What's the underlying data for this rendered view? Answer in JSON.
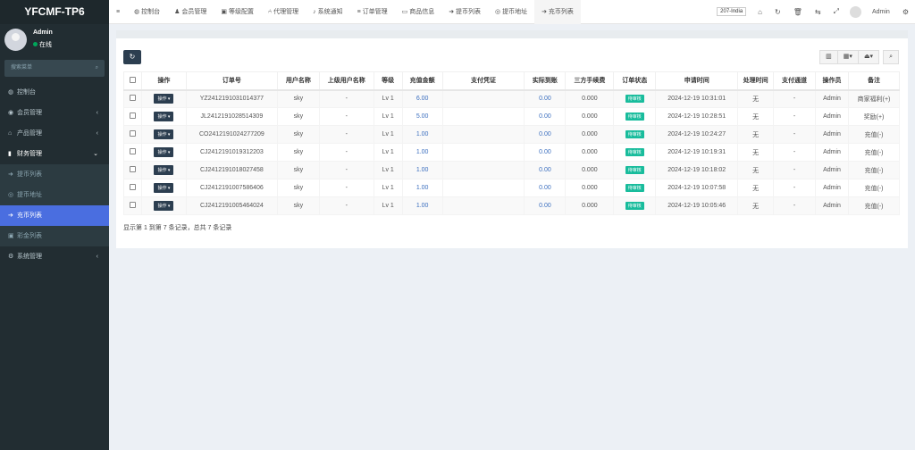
{
  "app": {
    "title": "YFCMF-TP6"
  },
  "user": {
    "name": "Admin",
    "status": "在线"
  },
  "sidebar": {
    "search_placeholder": "搜索菜单",
    "items": [
      {
        "label": "控制台",
        "icon": "dashboard-icon"
      },
      {
        "label": "会员管理",
        "icon": "user-circle-icon",
        "arrow": "‹"
      },
      {
        "label": "产品管理",
        "icon": "home-icon",
        "arrow": "‹"
      },
      {
        "label": "财务管理",
        "icon": "money-icon",
        "arrow": "⌄"
      },
      {
        "label": "提币列表",
        "icon": "sign-out-icon",
        "sub": true
      },
      {
        "label": "提币地址",
        "icon": "globe-icon",
        "sub": true
      },
      {
        "label": "充币列表",
        "icon": "sign-in-icon",
        "sub": true,
        "active": true
      },
      {
        "label": "彩金列表",
        "icon": "gift-icon",
        "sub": true
      },
      {
        "label": "系统管理",
        "icon": "cogs-icon",
        "arrow": "‹"
      }
    ]
  },
  "topnav": {
    "tabs": [
      {
        "label": "控制台",
        "icon": "dashboard-icon",
        "glyph": "◍"
      },
      {
        "label": "会员管理",
        "icon": "user-icon",
        "glyph": "♟"
      },
      {
        "label": "等级配置",
        "icon": "level-icon",
        "glyph": "▣"
      },
      {
        "label": "代理管理",
        "icon": "sitemap-icon",
        "glyph": "⑃"
      },
      {
        "label": "系统通知",
        "icon": "bell-icon",
        "glyph": "♪"
      },
      {
        "label": "订单管理",
        "icon": "list-icon",
        "glyph": "≡"
      },
      {
        "label": "商品信息",
        "icon": "desktop-icon",
        "glyph": "▭"
      },
      {
        "label": "提币列表",
        "icon": "sign-out-icon",
        "glyph": "➜"
      },
      {
        "label": "提币地址",
        "icon": "globe-icon",
        "glyph": "◎"
      },
      {
        "label": "充币列表",
        "icon": "sign-in-icon",
        "glyph": "➔",
        "active": true
      }
    ],
    "region": "207-India",
    "admin": "Admin"
  },
  "table": {
    "headers": [
      "操作",
      "订单号",
      "用户名称",
      "上级用户名称",
      "等级",
      "充值金额",
      "支付凭证",
      "实际到账",
      "三方手续费",
      "订单状态",
      "申请时间",
      "处理时间",
      "支付通道",
      "操作员",
      "备注"
    ],
    "op_label": "操作",
    "rows": [
      {
        "order": "YZ2412191031014377",
        "user": "sky",
        "parent": "-",
        "level": "Lv 1",
        "amount": "6.00",
        "proof": "",
        "actual": "0.00",
        "fee": "0.000",
        "status": "待审核",
        "apply_time": "2024-12-19 10:31:01",
        "process_time": "无",
        "channel": "-",
        "operator": "Admin",
        "remark": "商家福利(+)"
      },
      {
        "order": "JL2412191028514309",
        "user": "sky",
        "parent": "-",
        "level": "Lv 1",
        "amount": "5.00",
        "proof": "",
        "actual": "0.00",
        "fee": "0.000",
        "status": "待审核",
        "apply_time": "2024-12-19 10:28:51",
        "process_time": "无",
        "channel": "-",
        "operator": "Admin",
        "remark": "奖励(+)"
      },
      {
        "order": "CO2412191024277209",
        "user": "sky",
        "parent": "-",
        "level": "Lv 1",
        "amount": "1.00",
        "proof": "",
        "actual": "0.00",
        "fee": "0.000",
        "status": "待审核",
        "apply_time": "2024-12-19 10:24:27",
        "process_time": "无",
        "channel": "-",
        "operator": "Admin",
        "remark": "充值(-)"
      },
      {
        "order": "CJ2412191019312203",
        "user": "sky",
        "parent": "-",
        "level": "Lv 1",
        "amount": "1.00",
        "proof": "",
        "actual": "0.00",
        "fee": "0.000",
        "status": "待审核",
        "apply_time": "2024-12-19 10:19:31",
        "process_time": "无",
        "channel": "-",
        "operator": "Admin",
        "remark": "充值(-)"
      },
      {
        "order": "CJ2412191018027458",
        "user": "sky",
        "parent": "-",
        "level": "Lv 1",
        "amount": "1.00",
        "proof": "",
        "actual": "0.00",
        "fee": "0.000",
        "status": "待审核",
        "apply_time": "2024-12-19 10:18:02",
        "process_time": "无",
        "channel": "-",
        "operator": "Admin",
        "remark": "充值(-)"
      },
      {
        "order": "CJ2412191007586406",
        "user": "sky",
        "parent": "-",
        "level": "Lv 1",
        "amount": "1.00",
        "proof": "",
        "actual": "0.00",
        "fee": "0.000",
        "status": "待审核",
        "apply_time": "2024-12-19 10:07:58",
        "process_time": "无",
        "channel": "-",
        "operator": "Admin",
        "remark": "充值(-)"
      },
      {
        "order": "CJ2412191005464024",
        "user": "sky",
        "parent": "-",
        "level": "Lv 1",
        "amount": "1.00",
        "proof": "",
        "actual": "0.00",
        "fee": "0.000",
        "status": "待审核",
        "apply_time": "2024-12-19 10:05:46",
        "process_time": "无",
        "channel": "-",
        "operator": "Admin",
        "remark": "充值(-)"
      }
    ],
    "footer": "显示第 1 到第 7 条记录，总共 7 条记录"
  },
  "colors": {
    "sidebar": "#222d32",
    "active": "#4a6ee0",
    "badge": "#18bc9c",
    "button": "#2c3e50"
  }
}
